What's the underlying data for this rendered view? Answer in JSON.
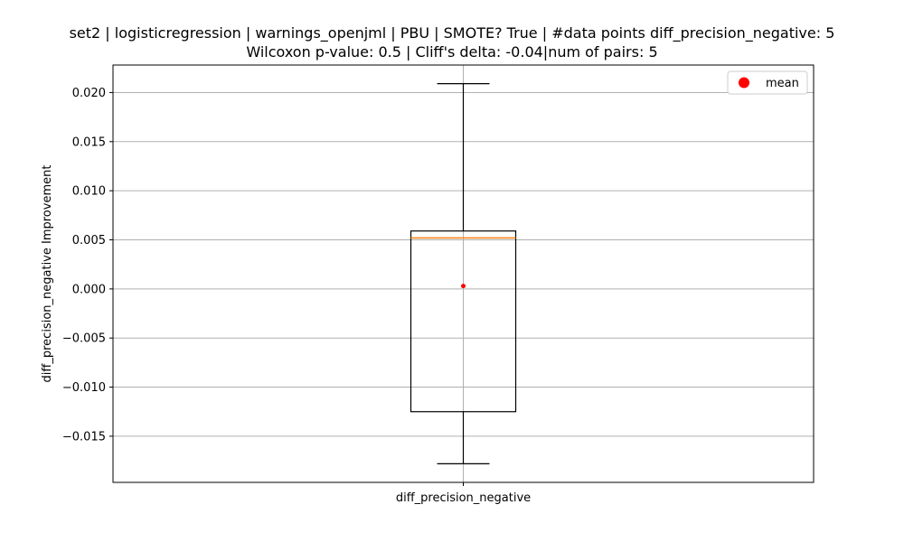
{
  "chart_data": {
    "type": "box",
    "title_line1": "set2 | logisticregression | warnings_openjml | PBU | SMOTE? True | #data points diff_precision_negative: 5",
    "title_line2": "Wilcoxon p-value: 0.5 | Cliff's delta: -0.04|num of pairs: 5",
    "xlabel": "",
    "ylabel": "diff_precision_negative Improvement",
    "categories": [
      "diff_precision_negative"
    ],
    "box": {
      "whisker_low": -0.0178,
      "q1": -0.0125,
      "median": 0.0052,
      "q3": 0.0059,
      "whisker_high": 0.0209,
      "mean": 0.0003
    },
    "ylim": [
      -0.0197,
      0.0228
    ],
    "yticks": [
      -0.015,
      -0.01,
      -0.005,
      0.0,
      0.005,
      0.01,
      0.015,
      0.02
    ],
    "ytick_labels": [
      "−0.015",
      "−0.010",
      "−0.005",
      "0.000",
      "0.005",
      "0.010",
      "0.015",
      "0.020"
    ],
    "grid": true,
    "legend": {
      "placement": "top-right",
      "entries": [
        {
          "label": "mean",
          "color": "#ff0000",
          "marker": "circle"
        }
      ]
    },
    "colors": {
      "box": "#000000",
      "median": "#ff7f0e",
      "mean": "#ff0000",
      "grid": "#b0b0b0"
    }
  }
}
